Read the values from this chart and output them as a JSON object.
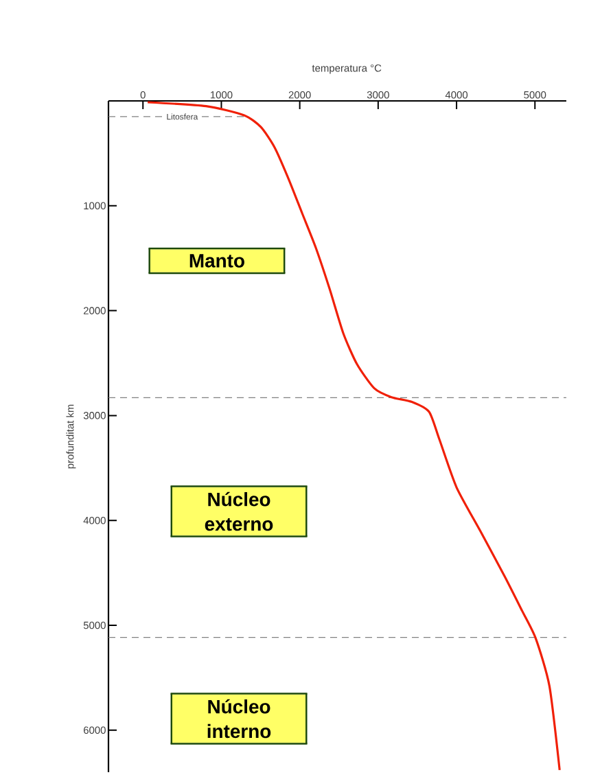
{
  "chart_data": {
    "type": "line",
    "xlabel": "temperatura °C",
    "ylabel": "profunditat km",
    "x": [
      60,
      805,
      1290,
      1505,
      1680,
      1855,
      2030,
      2205,
      2380,
      2555,
      2730,
      2950,
      3170,
      3430,
      3650,
      3780,
      4000,
      4310,
      4615,
      4835,
      5010,
      5185,
      5315
    ],
    "values": [
      13,
      50,
      137,
      250,
      445,
      740,
      1070,
      1400,
      1790,
      2215,
      2510,
      2740,
      2825,
      2870,
      2965,
      3225,
      3685,
      4110,
      4535,
      4860,
      5125,
      5580,
      6380
    ],
    "color": "#f02008",
    "marker": "none",
    "line_style": "solid",
    "xlim": [
      -440,
      5400
    ],
    "ylim": [
      6400,
      0
    ],
    "xticks": [
      0,
      1000,
      2000,
      3000,
      4000,
      5000
    ],
    "yticks": [
      1000,
      2000,
      3000,
      4000,
      5000,
      6000
    ],
    "ref_lines": [
      {
        "axis": "y",
        "value": 150,
        "label": "Litosfera",
        "color": "#808080",
        "line_style": "dashed"
      },
      {
        "axis": "y",
        "value": 2830,
        "color": "#808080",
        "line_style": "dashed"
      },
      {
        "axis": "y",
        "value": 5115,
        "color": "#808080",
        "line_style": "dashed"
      }
    ],
    "annotations": [
      "Manto",
      "Núcleo externo",
      "Núcleo interno"
    ]
  }
}
